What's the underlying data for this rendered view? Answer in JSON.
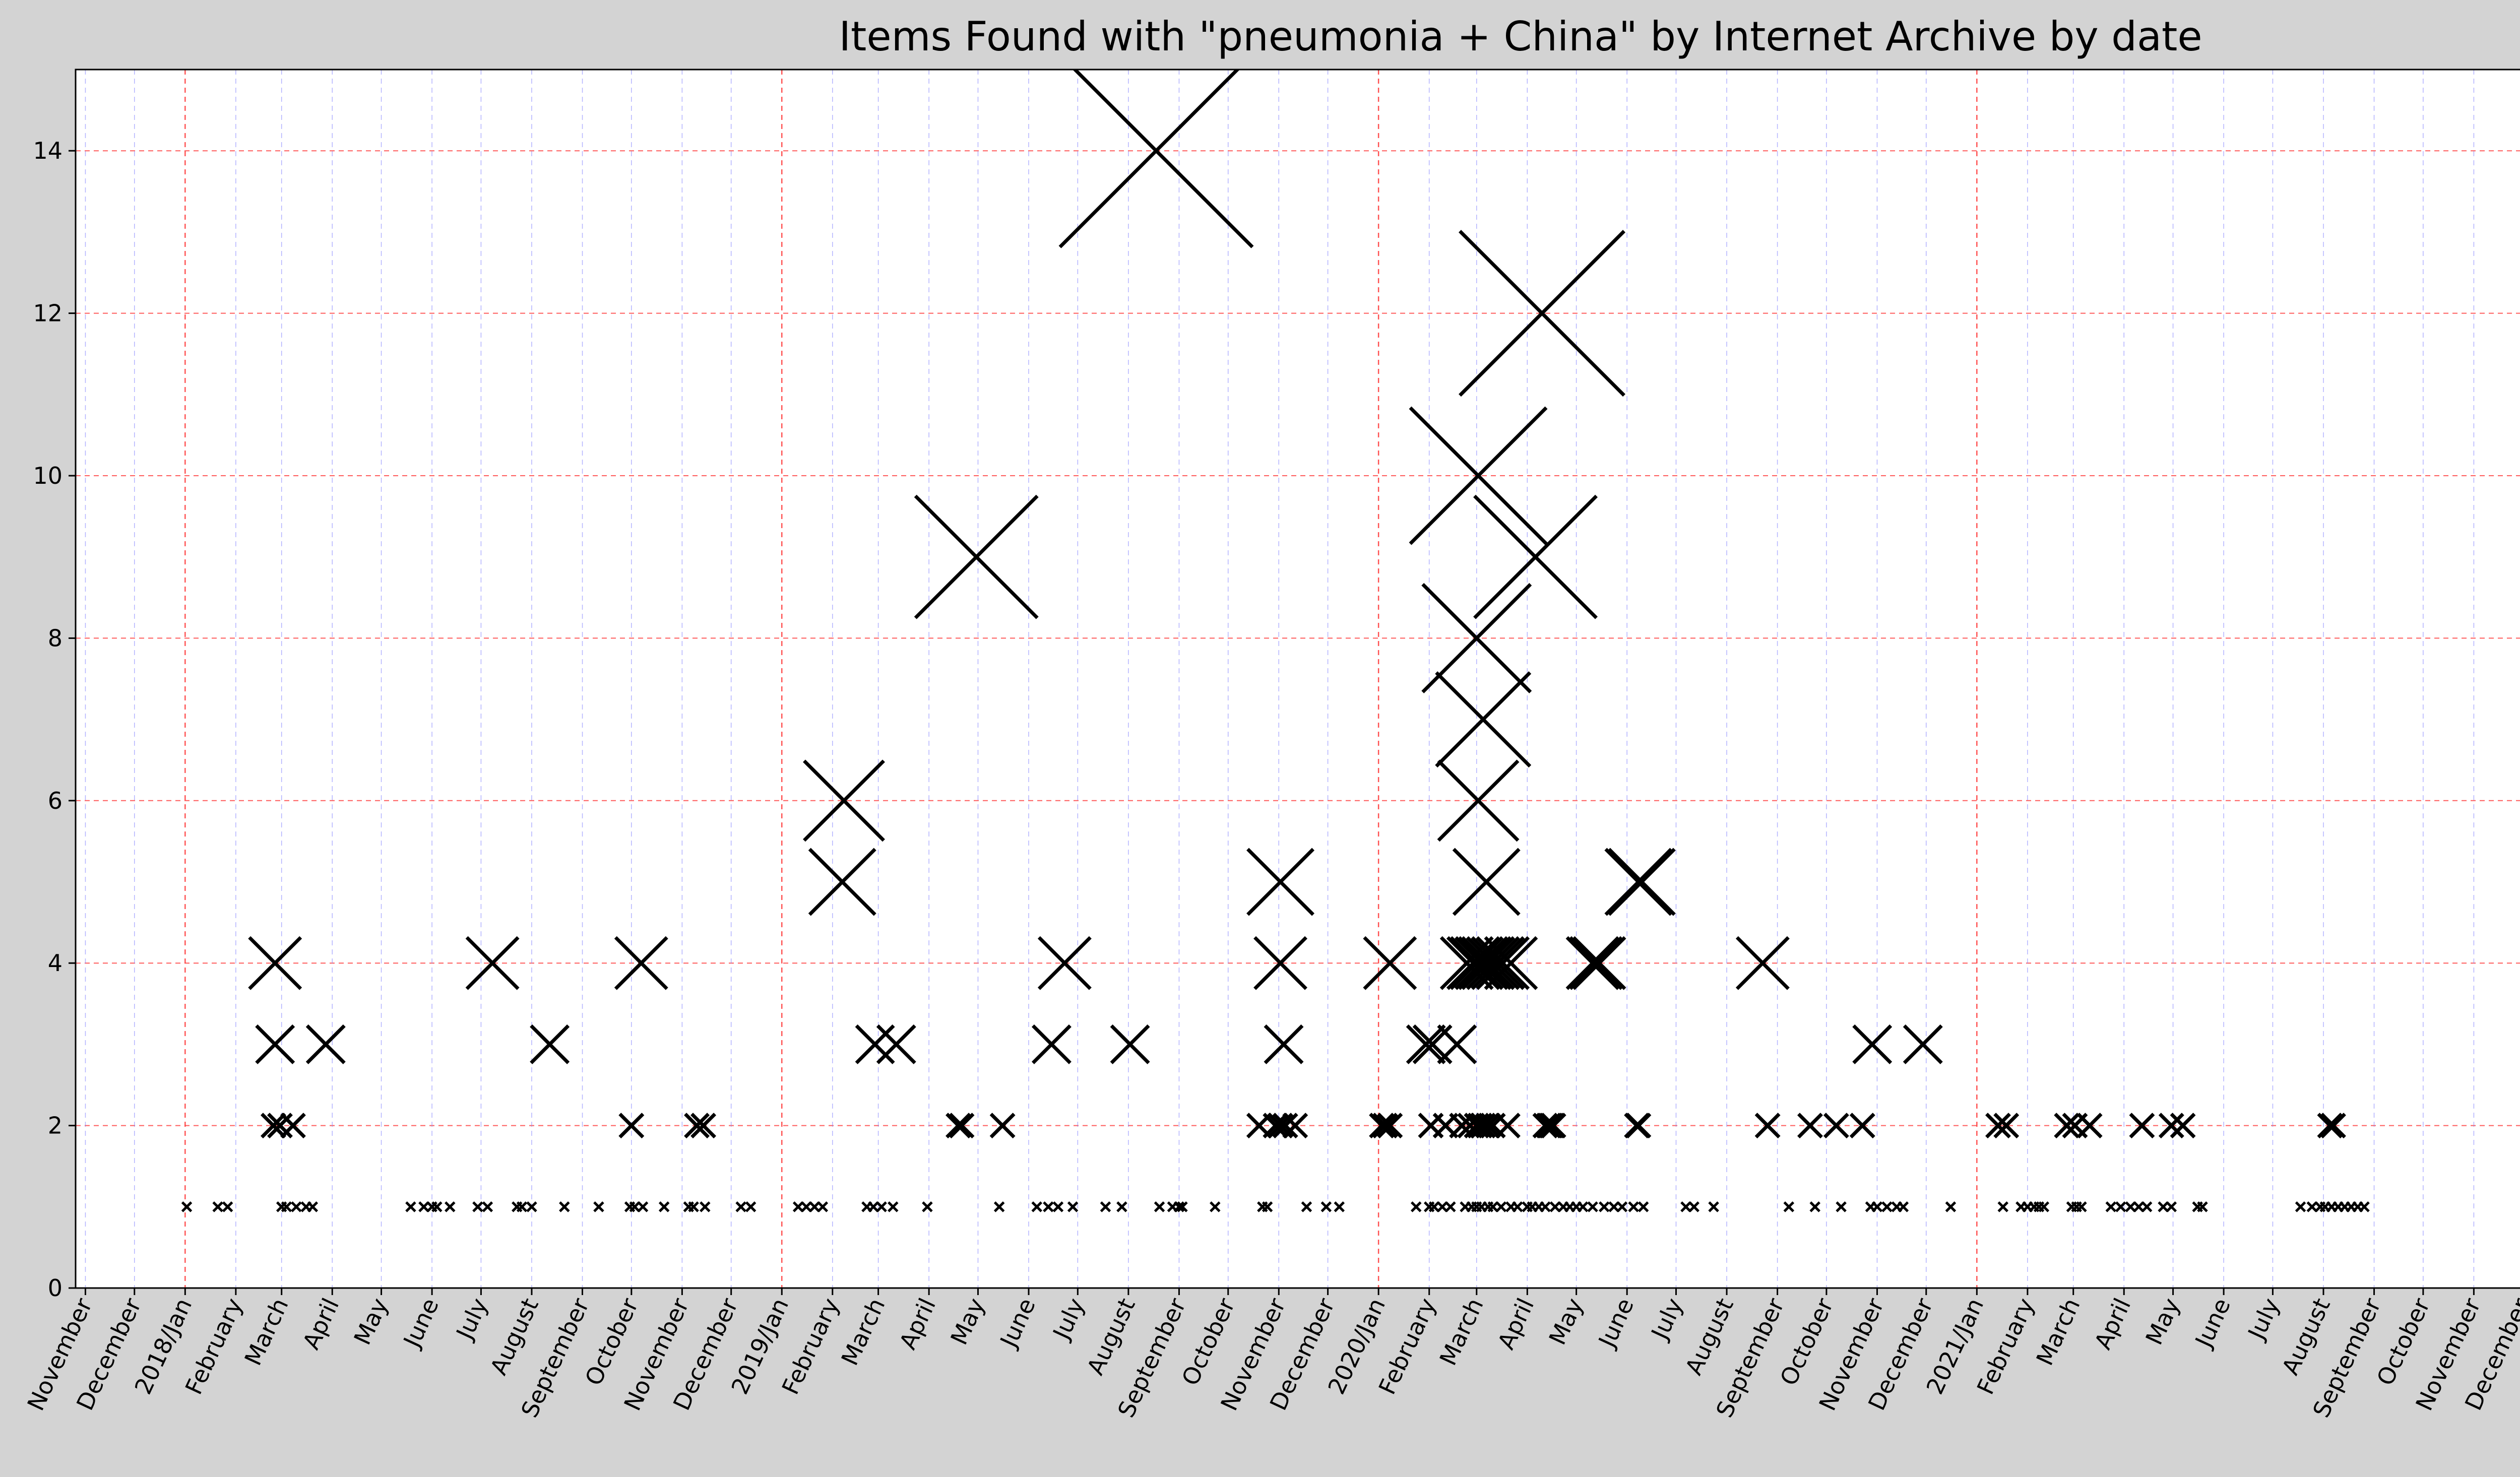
{
  "chart_data": {
    "type": "scatter",
    "title": "Items Found with \"pneumonia + China\" by Internet Archive by date",
    "xlabel": "",
    "ylabel": "",
    "x_range": [
      "2017-10-26",
      "2021-12-31"
    ],
    "ylim": [
      0,
      15
    ],
    "y_ticks": [
      0,
      2,
      4,
      6,
      8,
      10,
      12,
      14
    ],
    "x_tick_labels": [
      {
        "date": "2017-11-01",
        "label": "November",
        "year_start": false
      },
      {
        "date": "2017-12-01",
        "label": "December",
        "year_start": false
      },
      {
        "date": "2018-01-01",
        "label": "2018/Jan",
        "year_start": true
      },
      {
        "date": "2018-02-01",
        "label": "February",
        "year_start": false
      },
      {
        "date": "2018-03-01",
        "label": "March",
        "year_start": false
      },
      {
        "date": "2018-04-01",
        "label": "April",
        "year_start": false
      },
      {
        "date": "2018-05-01",
        "label": "May",
        "year_start": false
      },
      {
        "date": "2018-06-01",
        "label": "June",
        "year_start": false
      },
      {
        "date": "2018-07-01",
        "label": "July",
        "year_start": false
      },
      {
        "date": "2018-08-01",
        "label": "August",
        "year_start": false
      },
      {
        "date": "2018-09-01",
        "label": "September",
        "year_start": false
      },
      {
        "date": "2018-10-01",
        "label": "October",
        "year_start": false
      },
      {
        "date": "2018-11-01",
        "label": "November",
        "year_start": false
      },
      {
        "date": "2018-12-01",
        "label": "December",
        "year_start": false
      },
      {
        "date": "2019-01-01",
        "label": "2019/Jan",
        "year_start": true
      },
      {
        "date": "2019-02-01",
        "label": "February",
        "year_start": false
      },
      {
        "date": "2019-03-01",
        "label": "March",
        "year_start": false
      },
      {
        "date": "2019-04-01",
        "label": "April",
        "year_start": false
      },
      {
        "date": "2019-05-01",
        "label": "May",
        "year_start": false
      },
      {
        "date": "2019-06-01",
        "label": "June",
        "year_start": false
      },
      {
        "date": "2019-07-01",
        "label": "July",
        "year_start": false
      },
      {
        "date": "2019-08-01",
        "label": "August",
        "year_start": false
      },
      {
        "date": "2019-09-01",
        "label": "September",
        "year_start": false
      },
      {
        "date": "2019-10-01",
        "label": "October",
        "year_start": false
      },
      {
        "date": "2019-11-01",
        "label": "November",
        "year_start": false
      },
      {
        "date": "2019-12-01",
        "label": "December",
        "year_start": false
      },
      {
        "date": "2020-01-01",
        "label": "2020/Jan",
        "year_start": true
      },
      {
        "date": "2020-02-01",
        "label": "February",
        "year_start": false
      },
      {
        "date": "2020-03-01",
        "label": "March",
        "year_start": false
      },
      {
        "date": "2020-04-01",
        "label": "April",
        "year_start": false
      },
      {
        "date": "2020-05-01",
        "label": "May",
        "year_start": false
      },
      {
        "date": "2020-06-01",
        "label": "June",
        "year_start": false
      },
      {
        "date": "2020-07-01",
        "label": "July",
        "year_start": false
      },
      {
        "date": "2020-08-01",
        "label": "August",
        "year_start": false
      },
      {
        "date": "2020-09-01",
        "label": "September",
        "year_start": false
      },
      {
        "date": "2020-10-01",
        "label": "October",
        "year_start": false
      },
      {
        "date": "2020-11-01",
        "label": "November",
        "year_start": false
      },
      {
        "date": "2020-12-01",
        "label": "December",
        "year_start": false
      },
      {
        "date": "2021-01-01",
        "label": "2021/Jan",
        "year_start": true
      },
      {
        "date": "2021-02-01",
        "label": "February",
        "year_start": false
      },
      {
        "date": "2021-03-01",
        "label": "March",
        "year_start": false
      },
      {
        "date": "2021-04-01",
        "label": "April",
        "year_start": false
      },
      {
        "date": "2021-05-01",
        "label": "May",
        "year_start": false
      },
      {
        "date": "2021-06-01",
        "label": "June",
        "year_start": false
      },
      {
        "date": "2021-07-01",
        "label": "July",
        "year_start": false
      },
      {
        "date": "2021-08-01",
        "label": "August",
        "year_start": false
      },
      {
        "date": "2021-09-01",
        "label": "September",
        "year_start": false
      },
      {
        "date": "2021-10-01",
        "label": "October",
        "year_start": false
      },
      {
        "date": "2021-11-01",
        "label": "November",
        "year_start": false
      },
      {
        "date": "2021-12-01",
        "label": "December",
        "year_start": false
      }
    ],
    "grid": true,
    "marker": "x",
    "marker_size_scales_with_value": true,
    "colors": {
      "figure_background": "#d3d3d3",
      "plot_background": "#ffffff",
      "marker": "#000000",
      "month_grid": "#8080ff",
      "year_grid": "#ff4040",
      "y_grid": "#ff4040"
    },
    "points": [
      {
        "x": "2018-01-02",
        "y": 1
      },
      {
        "x": "2018-01-21",
        "y": 1
      },
      {
        "x": "2018-01-27",
        "y": 1
      },
      {
        "x": "2018-02-25",
        "y": 4
      },
      {
        "x": "2018-02-25",
        "y": 3
      },
      {
        "x": "2018-02-24",
        "y": 2
      },
      {
        "x": "2018-02-28",
        "y": 2
      },
      {
        "x": "2018-03-08",
        "y": 2
      },
      {
        "x": "2018-03-01",
        "y": 1
      },
      {
        "x": "2018-03-04",
        "y": 1
      },
      {
        "x": "2018-03-10",
        "y": 1
      },
      {
        "x": "2018-03-16",
        "y": 1
      },
      {
        "x": "2018-03-20",
        "y": 1
      },
      {
        "x": "2018-03-28",
        "y": 3
      },
      {
        "x": "2018-05-19",
        "y": 1
      },
      {
        "x": "2018-05-27",
        "y": 1
      },
      {
        "x": "2018-06-01",
        "y": 1
      },
      {
        "x": "2018-06-04",
        "y": 1
      },
      {
        "x": "2018-06-12",
        "y": 1
      },
      {
        "x": "2018-06-29",
        "y": 1
      },
      {
        "x": "2018-07-05",
        "y": 1
      },
      {
        "x": "2018-07-08",
        "y": 4
      },
      {
        "x": "2018-07-23",
        "y": 1
      },
      {
        "x": "2018-07-26",
        "y": 1
      },
      {
        "x": "2018-08-01",
        "y": 1
      },
      {
        "x": "2018-08-12",
        "y": 3
      },
      {
        "x": "2018-08-21",
        "y": 1
      },
      {
        "x": "2018-09-11",
        "y": 1
      },
      {
        "x": "2018-10-01",
        "y": 2
      },
      {
        "x": "2018-10-07",
        "y": 4
      },
      {
        "x": "2018-09-30",
        "y": 1
      },
      {
        "x": "2018-10-03",
        "y": 1
      },
      {
        "x": "2018-10-08",
        "y": 1
      },
      {
        "x": "2018-10-21",
        "y": 1
      },
      {
        "x": "2018-11-05",
        "y": 1
      },
      {
        "x": "2018-11-08",
        "y": 1
      },
      {
        "x": "2018-11-15",
        "y": 1
      },
      {
        "x": "2018-11-10",
        "y": 2
      },
      {
        "x": "2018-11-14",
        "y": 2
      },
      {
        "x": "2018-12-07",
        "y": 1
      },
      {
        "x": "2018-12-13",
        "y": 1
      },
      {
        "x": "2019-01-11",
        "y": 1
      },
      {
        "x": "2019-01-16",
        "y": 1
      },
      {
        "x": "2019-01-21",
        "y": 1
      },
      {
        "x": "2019-01-26",
        "y": 1
      },
      {
        "x": "2019-02-08",
        "y": 6
      },
      {
        "x": "2019-02-07",
        "y": 5
      },
      {
        "x": "2019-02-22",
        "y": 1
      },
      {
        "x": "2019-02-26",
        "y": 1
      },
      {
        "x": "2019-03-03",
        "y": 1
      },
      {
        "x": "2019-03-10",
        "y": 1
      },
      {
        "x": "2019-02-27",
        "y": 3
      },
      {
        "x": "2019-03-12",
        "y": 3
      },
      {
        "x": "2019-03-31",
        "y": 1
      },
      {
        "x": "2019-04-30",
        "y": 9
      },
      {
        "x": "2019-04-19",
        "y": 2
      },
      {
        "x": "2019-04-21",
        "y": 2
      },
      {
        "x": "2019-05-16",
        "y": 2
      },
      {
        "x": "2019-05-14",
        "y": 1
      },
      {
        "x": "2019-06-06",
        "y": 1
      },
      {
        "x": "2019-06-13",
        "y": 1
      },
      {
        "x": "2019-06-19",
        "y": 1
      },
      {
        "x": "2019-06-28",
        "y": 1
      },
      {
        "x": "2019-06-15",
        "y": 3
      },
      {
        "x": "2019-06-23",
        "y": 4
      },
      {
        "x": "2019-07-18",
        "y": 1
      },
      {
        "x": "2019-07-28",
        "y": 1
      },
      {
        "x": "2019-08-02",
        "y": 3
      },
      {
        "x": "2019-08-18",
        "y": 14
      },
      {
        "x": "2019-08-20",
        "y": 1
      },
      {
        "x": "2019-08-28",
        "y": 1
      },
      {
        "x": "2019-09-01",
        "y": 1
      },
      {
        "x": "2019-09-03",
        "y": 1
      },
      {
        "x": "2019-09-23",
        "y": 1
      },
      {
        "x": "2019-10-20",
        "y": 2
      },
      {
        "x": "2019-10-22",
        "y": 1
      },
      {
        "x": "2019-10-25",
        "y": 1
      },
      {
        "x": "2019-11-02",
        "y": 5
      },
      {
        "x": "2019-11-02",
        "y": 4
      },
      {
        "x": "2019-11-04",
        "y": 3
      },
      {
        "x": "2019-10-30",
        "y": 2
      },
      {
        "x": "2019-11-02",
        "y": 2
      },
      {
        "x": "2019-11-05",
        "y": 2
      },
      {
        "x": "2019-11-11",
        "y": 2
      },
      {
        "x": "2019-11-18",
        "y": 1
      },
      {
        "x": "2019-11-30",
        "y": 1
      },
      {
        "x": "2019-12-08",
        "y": 1
      },
      {
        "x": "2020-01-03",
        "y": 2
      },
      {
        "x": "2020-01-05",
        "y": 2
      },
      {
        "x": "2020-01-08",
        "y": 2
      },
      {
        "x": "2020-01-08",
        "y": 4
      },
      {
        "x": "2020-01-24",
        "y": 1
      },
      {
        "x": "2020-02-01",
        "y": 1
      },
      {
        "x": "2020-02-04",
        "y": 1
      },
      {
        "x": "2020-02-09",
        "y": 1
      },
      {
        "x": "2020-02-14",
        "y": 1
      },
      {
        "x": "2020-02-23",
        "y": 1
      },
      {
        "x": "2020-02-27",
        "y": 1
      },
      {
        "x": "2020-03-01",
        "y": 1
      },
      {
        "x": "2020-03-04",
        "y": 1
      },
      {
        "x": "2020-03-08",
        "y": 1
      },
      {
        "x": "2020-03-11",
        "y": 1
      },
      {
        "x": "2020-03-16",
        "y": 1
      },
      {
        "x": "2020-03-22",
        "y": 1
      },
      {
        "x": "2020-03-26",
        "y": 1
      },
      {
        "x": "2020-04-01",
        "y": 1
      },
      {
        "x": "2020-04-04",
        "y": 1
      },
      {
        "x": "2020-04-08",
        "y": 1
      },
      {
        "x": "2020-04-12",
        "y": 1
      },
      {
        "x": "2020-04-18",
        "y": 1
      },
      {
        "x": "2020-04-23",
        "y": 1
      },
      {
        "x": "2020-04-27",
        "y": 1
      },
      {
        "x": "2020-05-01",
        "y": 1
      },
      {
        "x": "2020-05-05",
        "y": 1
      },
      {
        "x": "2020-05-11",
        "y": 1
      },
      {
        "x": "2020-05-18",
        "y": 1
      },
      {
        "x": "2020-05-24",
        "y": 1
      },
      {
        "x": "2020-05-29",
        "y": 1
      },
      {
        "x": "2020-06-05",
        "y": 1
      },
      {
        "x": "2020-06-11",
        "y": 1
      },
      {
        "x": "2020-01-30",
        "y": 3
      },
      {
        "x": "2020-02-03",
        "y": 3
      },
      {
        "x": "2020-02-18",
        "y": 3
      },
      {
        "x": "2020-02-02",
        "y": 2
      },
      {
        "x": "2020-02-11",
        "y": 2
      },
      {
        "x": "2020-02-21",
        "y": 2
      },
      {
        "x": "2020-02-26",
        "y": 2
      },
      {
        "x": "2020-03-01",
        "y": 2
      },
      {
        "x": "2020-03-03",
        "y": 2
      },
      {
        "x": "2020-03-05",
        "y": 2
      },
      {
        "x": "2020-03-08",
        "y": 2
      },
      {
        "x": "2020-03-11",
        "y": 2
      },
      {
        "x": "2020-03-20",
        "y": 2
      },
      {
        "x": "2020-02-24",
        "y": 4
      },
      {
        "x": "2020-02-28",
        "y": 4
      },
      {
        "x": "2020-03-01",
        "y": 4
      },
      {
        "x": "2020-03-04",
        "y": 4
      },
      {
        "x": "2020-03-06",
        "y": 4
      },
      {
        "x": "2020-03-08",
        "y": 4
      },
      {
        "x": "2020-03-11",
        "y": 4
      },
      {
        "x": "2020-03-14",
        "y": 4
      },
      {
        "x": "2020-03-17",
        "y": 4
      },
      {
        "x": "2020-03-22",
        "y": 4
      },
      {
        "x": "2020-03-07",
        "y": 5
      },
      {
        "x": "2020-03-02",
        "y": 6
      },
      {
        "x": "2020-03-05",
        "y": 7
      },
      {
        "x": "2020-03-01",
        "y": 8
      },
      {
        "x": "2020-03-02",
        "y": 10
      },
      {
        "x": "2020-04-10",
        "y": 12
      },
      {
        "x": "2020-04-06",
        "y": 9
      },
      {
        "x": "2020-04-12",
        "y": 2
      },
      {
        "x": "2020-04-14",
        "y": 2
      },
      {
        "x": "2020-04-15",
        "y": 2
      },
      {
        "x": "2020-04-16",
        "y": 2
      },
      {
        "x": "2020-04-17",
        "y": 2
      },
      {
        "x": "2020-05-11",
        "y": 4
      },
      {
        "x": "2020-05-13",
        "y": 4
      },
      {
        "x": "2020-05-15",
        "y": 4
      },
      {
        "x": "2020-06-07",
        "y": 2
      },
      {
        "x": "2020-06-08",
        "y": 2
      },
      {
        "x": "2020-06-08",
        "y": 5
      },
      {
        "x": "2020-06-10",
        "y": 5
      },
      {
        "x": "2020-07-07",
        "y": 1
      },
      {
        "x": "2020-07-12",
        "y": 1
      },
      {
        "x": "2020-07-24",
        "y": 1
      },
      {
        "x": "2020-08-23",
        "y": 4
      },
      {
        "x": "2020-08-26",
        "y": 2
      },
      {
        "x": "2020-09-21",
        "y": 2
      },
      {
        "x": "2020-10-07",
        "y": 2
      },
      {
        "x": "2020-10-23",
        "y": 2
      },
      {
        "x": "2020-09-08",
        "y": 1
      },
      {
        "x": "2020-09-24",
        "y": 1
      },
      {
        "x": "2020-10-10",
        "y": 1
      },
      {
        "x": "2020-10-29",
        "y": 3
      },
      {
        "x": "2020-10-28",
        "y": 1
      },
      {
        "x": "2020-11-01",
        "y": 1
      },
      {
        "x": "2020-11-07",
        "y": 1
      },
      {
        "x": "2020-11-13",
        "y": 1
      },
      {
        "x": "2020-11-17",
        "y": 1
      },
      {
        "x": "2020-11-29",
        "y": 3
      },
      {
        "x": "2020-12-16",
        "y": 1
      },
      {
        "x": "2021-01-14",
        "y": 2
      },
      {
        "x": "2021-01-19",
        "y": 2
      },
      {
        "x": "2021-01-17",
        "y": 1
      },
      {
        "x": "2021-01-28",
        "y": 1
      },
      {
        "x": "2021-02-01",
        "y": 1
      },
      {
        "x": "2021-02-05",
        "y": 1
      },
      {
        "x": "2021-02-08",
        "y": 1
      },
      {
        "x": "2021-02-11",
        "y": 1
      },
      {
        "x": "2021-02-28",
        "y": 1
      },
      {
        "x": "2021-03-03",
        "y": 1
      },
      {
        "x": "2021-03-06",
        "y": 1
      },
      {
        "x": "2021-02-25",
        "y": 2
      },
      {
        "x": "2021-03-02",
        "y": 2
      },
      {
        "x": "2021-03-11",
        "y": 2
      },
      {
        "x": "2021-03-24",
        "y": 1
      },
      {
        "x": "2021-03-30",
        "y": 1
      },
      {
        "x": "2021-04-05",
        "y": 1
      },
      {
        "x": "2021-04-10",
        "y": 1
      },
      {
        "x": "2021-04-15",
        "y": 1
      },
      {
        "x": "2021-04-25",
        "y": 1
      },
      {
        "x": "2021-04-30",
        "y": 1
      },
      {
        "x": "2021-04-12",
        "y": 2
      },
      {
        "x": "2021-05-07",
        "y": 2
      },
      {
        "x": "2021-05-16",
        "y": 1
      },
      {
        "x": "2021-05-19",
        "y": 1
      },
      {
        "x": "2021-04-30",
        "y": 2
      },
      {
        "x": "2021-07-18",
        "y": 1
      },
      {
        "x": "2021-07-25",
        "y": 1
      },
      {
        "x": "2021-07-30",
        "y": 1
      },
      {
        "x": "2021-08-02",
        "y": 1
      },
      {
        "x": "2021-08-06",
        "y": 1
      },
      {
        "x": "2021-08-10",
        "y": 1
      },
      {
        "x": "2021-08-14",
        "y": 1
      },
      {
        "x": "2021-08-18",
        "y": 1
      },
      {
        "x": "2021-08-22",
        "y": 1
      },
      {
        "x": "2021-08-26",
        "y": 1
      },
      {
        "x": "2021-08-05",
        "y": 2
      },
      {
        "x": "2021-08-07",
        "y": 2
      }
    ]
  }
}
